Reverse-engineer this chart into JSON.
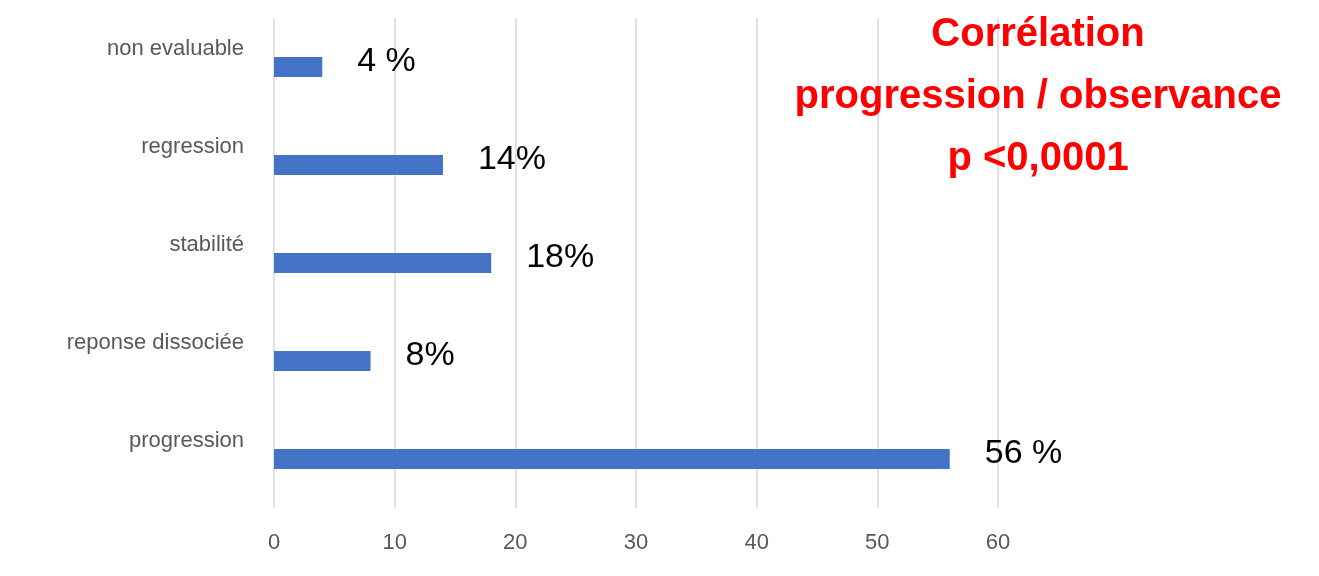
{
  "chart_data": {
    "type": "bar",
    "orientation": "horizontal",
    "categories": [
      "non evaluable",
      "regression",
      "stabilité",
      "reponse dissociée",
      "progression"
    ],
    "values": [
      4,
      14,
      18,
      8,
      56
    ],
    "value_labels": [
      "4 %",
      "14%",
      "18%",
      "8%",
      "56 %"
    ],
    "color": "#4472c4",
    "xlim": [
      0,
      60
    ],
    "xticks": [
      0,
      10,
      20,
      30,
      40,
      50,
      60
    ],
    "grid": "x",
    "annotations": [
      "Corrélation",
      "progression / observance",
      "p <0,0001"
    ]
  }
}
